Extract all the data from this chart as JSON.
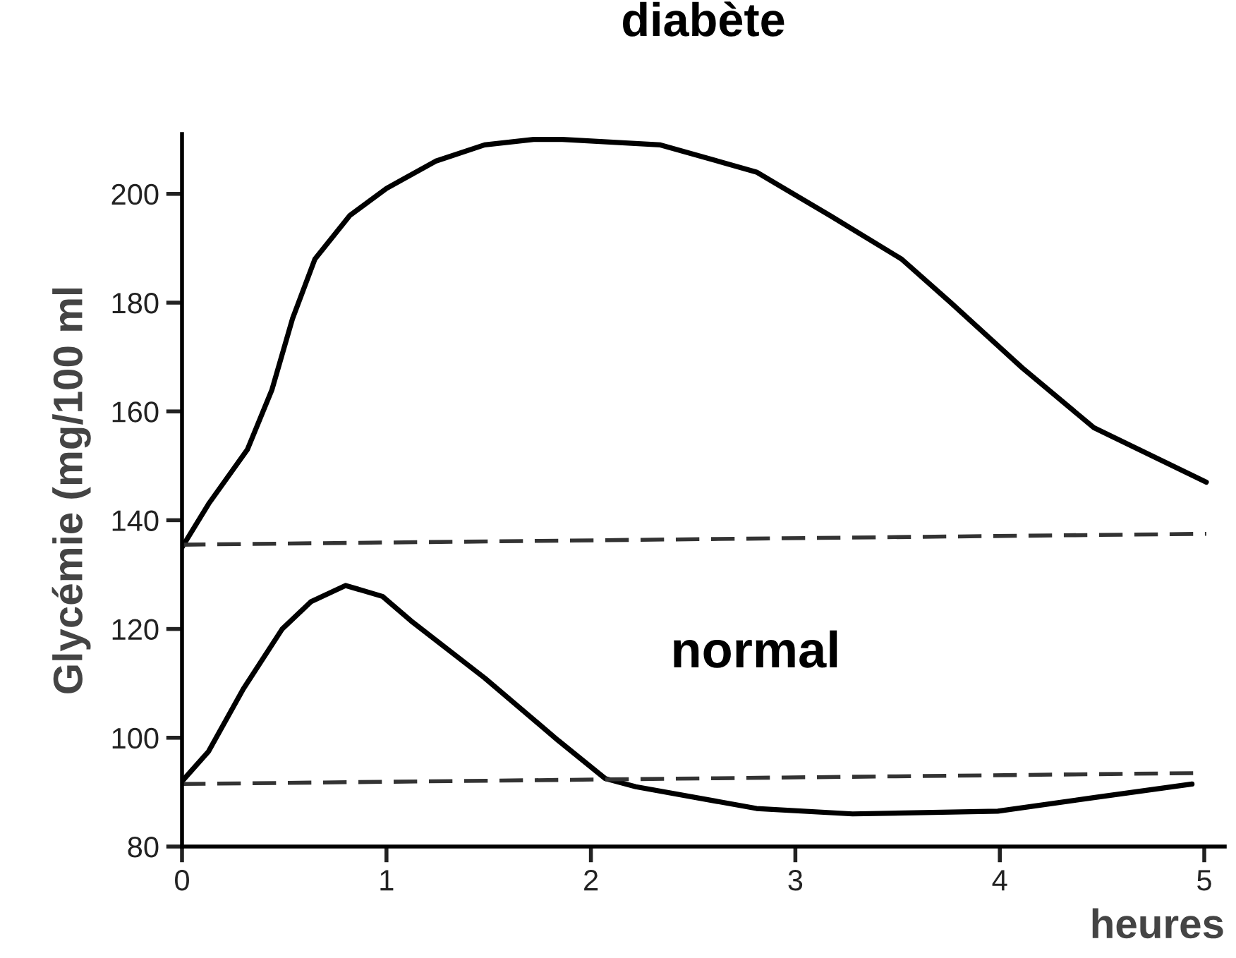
{
  "chart_data": {
    "type": "line",
    "title": "diabète",
    "xlabel": "heures",
    "ylabel": "Glycémie (mg/100 ml",
    "annotations": [
      "normal"
    ],
    "series": [
      {
        "color": "#000000",
        "x": [
          0,
          0.13,
          0.32,
          0.44,
          0.54,
          0.65,
          0.82,
          1.0,
          1.24,
          1.48,
          1.72,
          1.86,
          2.34,
          2.81,
          3.17,
          3.52,
          3.76,
          4.11,
          4.46,
          5.01
        ],
        "values": [
          135,
          143,
          153,
          164,
          177,
          188,
          196,
          201,
          206,
          209,
          210,
          210,
          209,
          204,
          196,
          188,
          180,
          168,
          157,
          147
        ]
      },
      {
        "color": "#000000",
        "x": [
          0,
          0.13,
          0.3,
          0.49,
          0.63,
          0.8,
          0.98,
          1.12,
          1.48,
          1.84,
          2.07,
          2.22,
          2.81,
          3.28,
          3.99,
          4.46,
          4.94
        ],
        "values": [
          92,
          97.5,
          109,
          120,
          125,
          128,
          126,
          121.5,
          111,
          99.5,
          92.5,
          91,
          87,
          86,
          86.5,
          89,
          91.5
        ]
      },
      {
        "color": "#333333",
        "line_style": "dashed",
        "x": [
          0,
          5.01
        ],
        "values": [
          135.5,
          137.5
        ]
      },
      {
        "color": "#333333",
        "line_style": "dashed",
        "x": [
          0,
          4.95
        ],
        "values": [
          91.5,
          93.5
        ]
      }
    ],
    "xlim": [
      0,
      5.1
    ],
    "xticks": [
      0,
      1,
      2,
      3,
      4,
      5
    ],
    "ylim": [
      80,
      211
    ],
    "yticks": [
      80,
      100,
      120,
      140,
      160,
      180,
      200
    ],
    "grid": false,
    "legend": false
  }
}
